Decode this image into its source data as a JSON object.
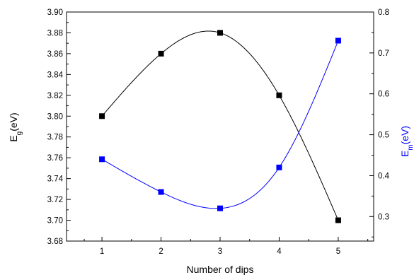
{
  "chart_data": {
    "type": "line",
    "x": [
      1,
      2,
      3,
      4,
      5
    ],
    "xlabel": "Number of dips",
    "xlim": [
      0.4,
      5.6
    ],
    "x_ticks": [
      "1",
      "2",
      "3",
      "4",
      "5"
    ],
    "grid": false,
    "legend": "none",
    "y_left": {
      "label_main": "E",
      "label_sub": "g",
      "label_unit": "(eV)",
      "lim": [
        3.68,
        3.9
      ],
      "ticks": [
        "3.68",
        "3.70",
        "3.72",
        "3.74",
        "3.76",
        "3.78",
        "3.80",
        "3.82",
        "3.84",
        "3.86",
        "3.88",
        "3.90"
      ],
      "color": "#000000"
    },
    "y_right": {
      "label_main": "E",
      "label_sub": "m",
      "label_unit": "(eV)",
      "lim": [
        0.24,
        0.8
      ],
      "ticks": [
        "0.3",
        "0.4",
        "0.5",
        "0.6",
        "0.7",
        "0.8"
      ],
      "color": "#0000ff"
    },
    "series": [
      {
        "axis": "left",
        "values": [
          3.8,
          3.86,
          3.88,
          3.82,
          3.7
        ],
        "color": "#000000",
        "marker": "square"
      },
      {
        "axis": "right",
        "values": [
          0.44,
          0.36,
          0.32,
          0.42,
          0.73
        ],
        "color": "#0000ff",
        "marker": "square"
      }
    ]
  }
}
